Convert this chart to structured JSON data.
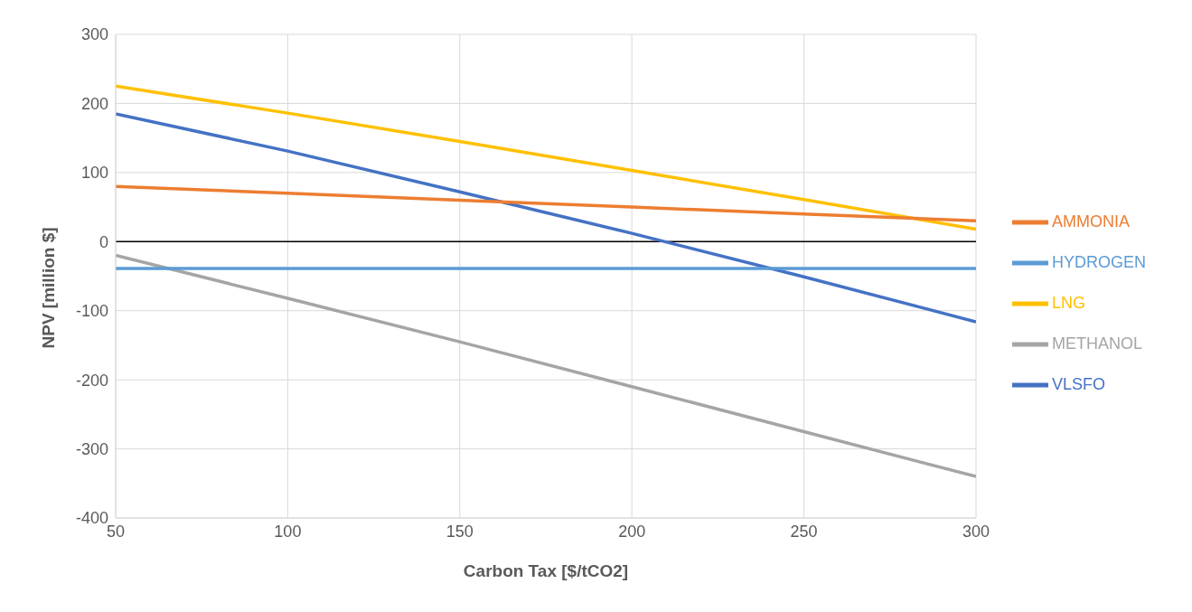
{
  "chart_data": {
    "type": "line",
    "xlabel": "Carbon Tax [$/tCO2]",
    "ylabel": "NPV [million $]",
    "x": [
      50,
      100,
      150,
      200,
      250,
      300
    ],
    "series": [
      {
        "name": "VLSFO",
        "color": "#4472c4",
        "values": [
          185,
          131,
          72,
          12,
          -51,
          -116
        ]
      },
      {
        "name": "LNG",
        "color": "#ffc000",
        "values": [
          225,
          186,
          145,
          103,
          61,
          18
        ]
      },
      {
        "name": "METHANOL",
        "color": "#a5a5a5",
        "values": [
          -20,
          -82,
          -145,
          -210,
          -275,
          -340
        ]
      },
      {
        "name": "AMMONIA",
        "color": "#ed7d31",
        "values": [
          80,
          70,
          60,
          50,
          40,
          30
        ]
      },
      {
        "name": "HYDROGEN",
        "color": "#5b9bd5",
        "values": [
          -39,
          -39,
          -39,
          -39,
          -39,
          -39
        ]
      }
    ],
    "xlim": [
      50,
      300
    ],
    "xticks": [
      50,
      100,
      150,
      200,
      250,
      300
    ],
    "ylim": [
      -400,
      300
    ],
    "yticks": [
      -400,
      -300,
      -200,
      -100,
      0,
      100,
      200,
      300
    ],
    "ref_lines": [
      {
        "axis": "y",
        "value": 0,
        "color": "#000000"
      }
    ],
    "grid": true,
    "legend": "right",
    "marker": "none",
    "line_style": "solid"
  }
}
